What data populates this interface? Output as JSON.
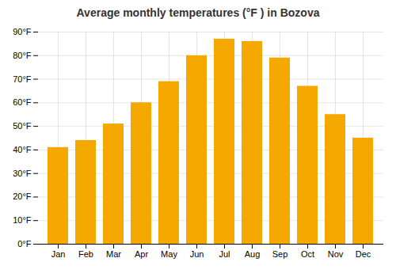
{
  "chart_data": {
    "type": "bar",
    "title": "Average monthly temperatures (°F ) in Bozova",
    "categories": [
      "Jan",
      "Feb",
      "Mar",
      "Apr",
      "May",
      "Jun",
      "Jul",
      "Aug",
      "Sep",
      "Oct",
      "Nov",
      "Dec"
    ],
    "values": [
      41,
      44,
      51,
      60,
      69,
      80,
      87,
      86,
      79,
      67,
      55,
      45
    ],
    "color": "#F5A800",
    "ylim": [
      0,
      90
    ],
    "yticks": [
      {
        "value": 0,
        "label": "0°F"
      },
      {
        "value": 10,
        "label": "10°F"
      },
      {
        "value": 20,
        "label": "20°F"
      },
      {
        "value": 30,
        "label": "30°F"
      },
      {
        "value": 40,
        "label": "40°F"
      },
      {
        "value": 50,
        "label": "50°F"
      },
      {
        "value": 60,
        "label": "60°F"
      },
      {
        "value": 70,
        "label": "70°F"
      },
      {
        "value": 80,
        "label": "80°F"
      },
      {
        "value": 90,
        "label": "90°F"
      }
    ],
    "grid": true
  }
}
